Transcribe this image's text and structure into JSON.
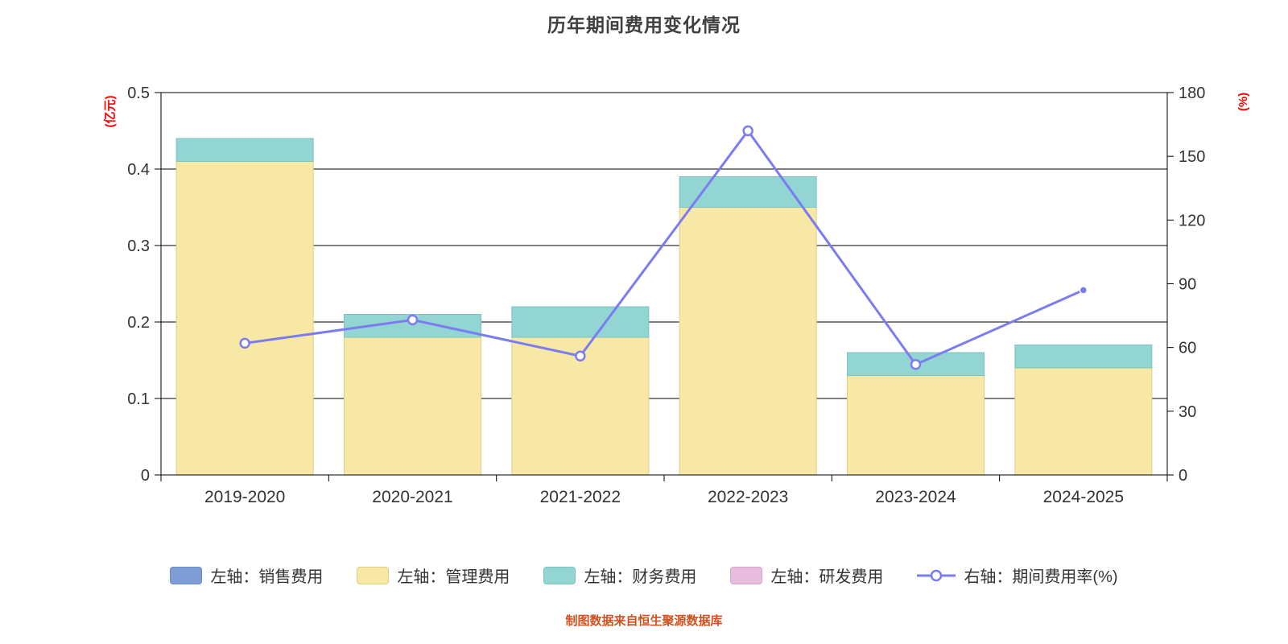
{
  "title": "历年期间费用变化情况",
  "footer": "制图数据来自恒生聚源数据库",
  "colors": {
    "axis_title": "#ff0000",
    "footer_text": "#d2501e",
    "tick_text": "#333333",
    "grid": "#000000",
    "background": "#ffffff"
  },
  "chart_data": {
    "type": "bar+line",
    "title": "历年期间费用变化情况",
    "categories": [
      "2019-2020",
      "2020-2021",
      "2021-2022",
      "2022-2023",
      "2023-2024",
      "2024-2025"
    ],
    "series": [
      {
        "name": "左轴：销售费用",
        "type": "bar",
        "axis": "left",
        "color": "#7d9dd4",
        "border": "#6a8cc6",
        "values": [
          0,
          0,
          0,
          0,
          0,
          0
        ]
      },
      {
        "name": "左轴：管理费用",
        "type": "bar",
        "axis": "left",
        "color": "#f8e8a6",
        "border": "#e2cd84",
        "values": [
          0.41,
          0.18,
          0.18,
          0.35,
          0.13,
          0.14
        ]
      },
      {
        "name": "左轴：财务费用",
        "type": "bar",
        "axis": "left",
        "color": "#92d5d2",
        "border": "#7ac3bf",
        "values": [
          0.03,
          0.03,
          0.04,
          0.04,
          0.03,
          0.03
        ]
      },
      {
        "name": "左轴：研发费用",
        "type": "bar",
        "axis": "left",
        "color": "#e7bcdc",
        "border": "#d5a5ca",
        "values": [
          0,
          0,
          0,
          0,
          0,
          0
        ]
      },
      {
        "name": "右轴：期间费用率(%)",
        "type": "line",
        "axis": "right",
        "color": "#7c7cf2",
        "values": [
          62,
          73,
          56,
          162,
          52,
          87
        ]
      }
    ],
    "left_axis": {
      "label": "(亿元)",
      "min": 0,
      "max": 0.5,
      "ticks": [
        0,
        0.1,
        0.2,
        0.3,
        0.4,
        0.5
      ]
    },
    "right_axis": {
      "label": "(%)",
      "min": 0,
      "max": 180,
      "ticks": [
        0,
        30,
        60,
        90,
        120,
        150,
        180
      ]
    },
    "grid": true,
    "legend_position": "bottom"
  }
}
